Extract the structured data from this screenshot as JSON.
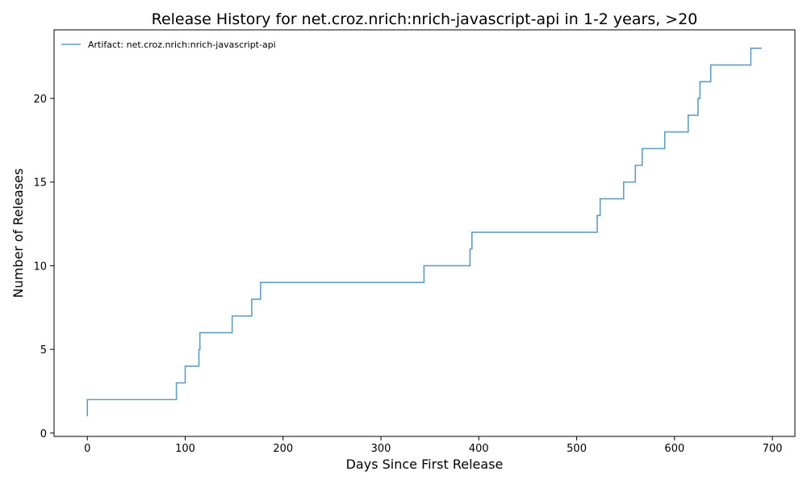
{
  "chart_data": {
    "type": "line",
    "step": "post",
    "title": "Release History for net.croz.nrich:nrich-javascript-api in 1-2 years, >20",
    "xlabel": "Days Since First Release",
    "ylabel": "Number of Releases",
    "xlim": [
      -34,
      723
    ],
    "ylim": [
      -0.2,
      24.1
    ],
    "xticks": [
      0,
      100,
      200,
      300,
      400,
      500,
      600,
      700
    ],
    "yticks": [
      0,
      5,
      10,
      15,
      20
    ],
    "grid": false,
    "legend_position": "top-left",
    "series": [
      {
        "name": "Artifact: net.croz.nrich:nrich-javascript-api",
        "color": "#5b9ec9",
        "x": [
          0,
          0,
          91,
          100,
          114,
          115,
          148,
          168,
          177,
          344,
          391,
          393,
          521,
          524,
          548,
          560,
          567,
          590,
          614,
          624,
          626,
          637,
          678,
          689
        ],
        "y": [
          1,
          2,
          3,
          4,
          5,
          6,
          7,
          8,
          9,
          10,
          11,
          12,
          13,
          14,
          15,
          16,
          17,
          18,
          19,
          20,
          21,
          22,
          23,
          23
        ]
      }
    ]
  }
}
